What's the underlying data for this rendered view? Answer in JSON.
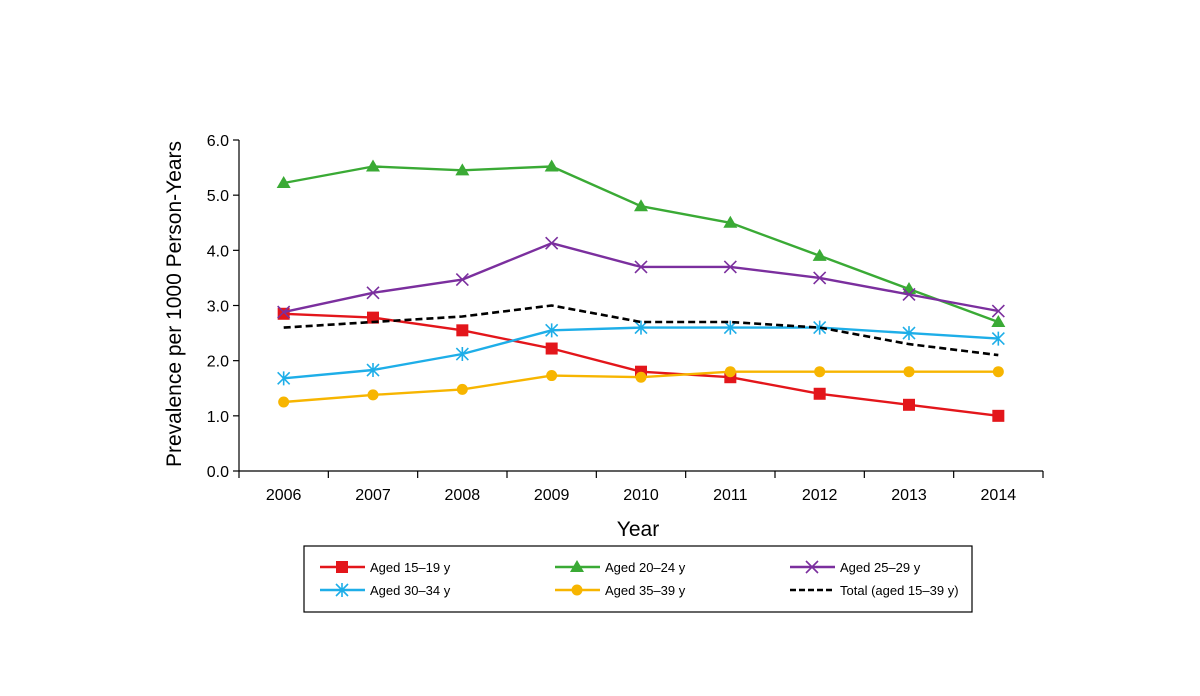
{
  "chart_data": {
    "type": "line",
    "xlabel": "Year",
    "ylabel": "Prevalence per 1000 Person-Years",
    "x": [
      "2006",
      "2007",
      "2008",
      "2009",
      "2010",
      "2011",
      "2012",
      "2013",
      "2014"
    ],
    "ylim": [
      0,
      6
    ],
    "yticks": [
      "0.0",
      "1.0",
      "2.0",
      "3.0",
      "4.0",
      "5.0",
      "6.0"
    ],
    "grid": false,
    "legend_position": "bottom",
    "series": [
      {
        "name": "Aged 15–19 y",
        "color": "#e3161b",
        "marker": "square",
        "dashed": false,
        "values": [
          2.85,
          2.78,
          2.55,
          2.22,
          1.8,
          1.7,
          1.4,
          1.2,
          1.0
        ]
      },
      {
        "name": "Aged 20–24 y",
        "color": "#3aaa35",
        "marker": "triangle",
        "dashed": false,
        "values": [
          5.22,
          5.52,
          5.45,
          5.52,
          4.8,
          4.5,
          3.9,
          3.3,
          2.7
        ]
      },
      {
        "name": "Aged 25–29 y",
        "color": "#7b2f9e",
        "marker": "x",
        "dashed": false,
        "values": [
          2.88,
          3.23,
          3.47,
          4.13,
          3.7,
          3.7,
          3.5,
          3.2,
          2.9
        ]
      },
      {
        "name": "Aged 30–34 y",
        "color": "#1eaee8",
        "marker": "asterisk",
        "dashed": false,
        "values": [
          1.68,
          1.83,
          2.12,
          2.55,
          2.6,
          2.6,
          2.6,
          2.5,
          2.4
        ]
      },
      {
        "name": "Aged 35–39 y",
        "color": "#f7b500",
        "marker": "circle",
        "dashed": false,
        "values": [
          1.25,
          1.38,
          1.48,
          1.73,
          1.7,
          1.8,
          1.8,
          1.8,
          1.8
        ]
      },
      {
        "name": "Total (aged 15–39 y)",
        "color": "#000000",
        "marker": "none",
        "dashed": true,
        "values": [
          2.6,
          2.7,
          2.8,
          3.0,
          2.7,
          2.7,
          2.6,
          2.3,
          2.1
        ]
      }
    ]
  }
}
